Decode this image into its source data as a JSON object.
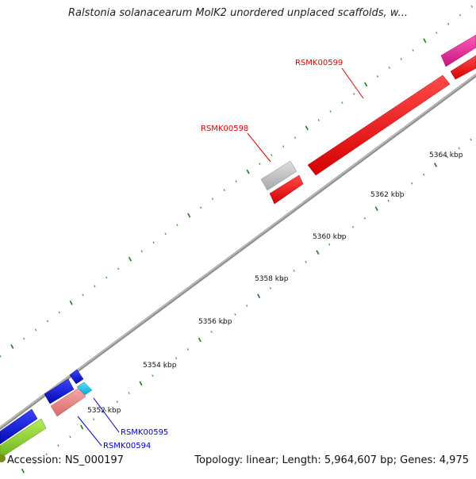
{
  "title": "Ralstonia solanacearum MolK2 unordered unplaced scaffolds, w...",
  "footer": {
    "accession": "Accession: NS_000197",
    "summary": "Topology: linear; Length: 5,964,607 bp; Genes: 4,975"
  },
  "ticks": [
    {
      "label": "5352 kbp"
    },
    {
      "label": "5354 kbp"
    },
    {
      "label": "5356 kbp"
    },
    {
      "label": "5358 kbp"
    },
    {
      "label": "5360 kbp"
    },
    {
      "label": "5362 kbp"
    },
    {
      "label": "5364 kbp"
    }
  ],
  "gene_labels": {
    "rsmk00599": "RSMK00599",
    "rsmk00598": "RSMK00598",
    "rsmk00595": "RSMK00595",
    "rsmk00594": "RSMK00594"
  },
  "colors": {
    "backbone": "#8c8c8c",
    "tick_major": "#1a7a1a",
    "tick_minor": "#2f9a2f",
    "label_red": "#e00000",
    "label_blue": "#0000cc",
    "gene_red": "#ff0000",
    "gene_grey": "#c8c8c8",
    "gene_magenta": "#e8269a",
    "gene_blue": "#0a18e6",
    "gene_salmon": "#f08a8a",
    "gene_cyan": "#12c8f0",
    "gene_lime": "#8ed82a"
  }
}
